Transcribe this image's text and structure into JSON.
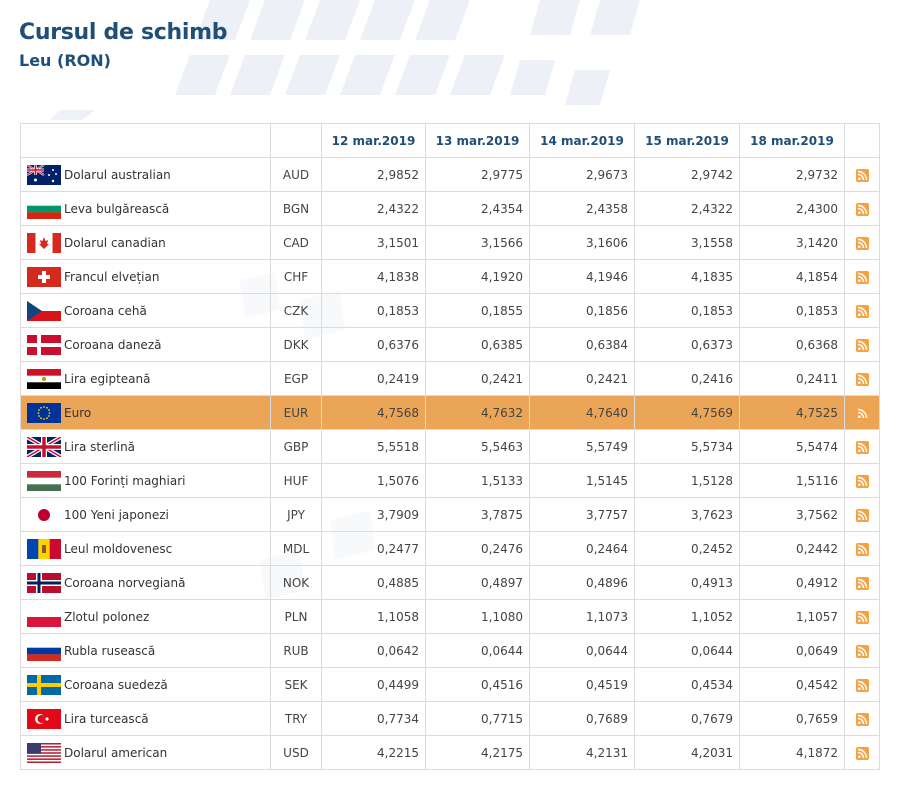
{
  "header": {
    "title": "Cursul de schimb",
    "subtitle": "Leu (RON)"
  },
  "table": {
    "dates": [
      "12 mar.2019",
      "13 mar.2019",
      "14 mar.2019",
      "15 mar.2019",
      "18 mar.2019"
    ],
    "highlight_color": "#eba556",
    "rows": [
      {
        "name": "Dolarul australian",
        "code": "AUD",
        "flag": "au",
        "values": [
          "2,9852",
          "2,9775",
          "2,9673",
          "2,9742",
          "2,9732"
        ]
      },
      {
        "name": "Leva bulgărească",
        "code": "BGN",
        "flag": "bg",
        "values": [
          "2,4322",
          "2,4354",
          "2,4358",
          "2,4322",
          "2,4300"
        ]
      },
      {
        "name": "Dolarul canadian",
        "code": "CAD",
        "flag": "ca",
        "values": [
          "3,1501",
          "3,1566",
          "3,1606",
          "3,1558",
          "3,1420"
        ]
      },
      {
        "name": "Francul elvețian",
        "code": "CHF",
        "flag": "ch",
        "values": [
          "4,1838",
          "4,1920",
          "4,1946",
          "4,1835",
          "4,1854"
        ]
      },
      {
        "name": "Coroana cehă",
        "code": "CZK",
        "flag": "cz",
        "values": [
          "0,1853",
          "0,1855",
          "0,1856",
          "0,1853",
          "0,1853"
        ]
      },
      {
        "name": "Coroana daneză",
        "code": "DKK",
        "flag": "dk",
        "values": [
          "0,6376",
          "0,6385",
          "0,6384",
          "0,6373",
          "0,6368"
        ]
      },
      {
        "name": "Lira egipteană",
        "code": "EGP",
        "flag": "eg",
        "values": [
          "0,2419",
          "0,2421",
          "0,2421",
          "0,2416",
          "0,2411"
        ]
      },
      {
        "name": "Euro",
        "code": "EUR",
        "flag": "eu",
        "highlight": true,
        "values": [
          "4,7568",
          "4,7632",
          "4,7640",
          "4,7569",
          "4,7525"
        ]
      },
      {
        "name": "Lira sterlină",
        "code": "GBP",
        "flag": "gb",
        "values": [
          "5,5518",
          "5,5463",
          "5,5749",
          "5,5734",
          "5,5474"
        ]
      },
      {
        "name": "100 Forinți maghiari",
        "code": "HUF",
        "flag": "hu",
        "values": [
          "1,5076",
          "1,5133",
          "1,5145",
          "1,5128",
          "1,5116"
        ]
      },
      {
        "name": "100 Yeni japonezi",
        "code": "JPY",
        "flag": "jp",
        "values": [
          "3,7909",
          "3,7875",
          "3,7757",
          "3,7623",
          "3,7562"
        ]
      },
      {
        "name": "Leul moldovenesc",
        "code": "MDL",
        "flag": "md",
        "values": [
          "0,2477",
          "0,2476",
          "0,2464",
          "0,2452",
          "0,2442"
        ]
      },
      {
        "name": "Coroana norvegiană",
        "code": "NOK",
        "flag": "no",
        "values": [
          "0,4885",
          "0,4897",
          "0,4896",
          "0,4913",
          "0,4912"
        ]
      },
      {
        "name": "Zlotul polonez",
        "code": "PLN",
        "flag": "pl",
        "values": [
          "1,1058",
          "1,1080",
          "1,1073",
          "1,1052",
          "1,1057"
        ]
      },
      {
        "name": "Rubla rusească",
        "code": "RUB",
        "flag": "ru",
        "values": [
          "0,0642",
          "0,0644",
          "0,0644",
          "0,0644",
          "0,0649"
        ]
      },
      {
        "name": "Coroana suedeză",
        "code": "SEK",
        "flag": "se",
        "values": [
          "0,4499",
          "0,4516",
          "0,4519",
          "0,4534",
          "0,4542"
        ]
      },
      {
        "name": "Lira turcească",
        "code": "TRY",
        "flag": "tr",
        "values": [
          "0,7734",
          "0,7715",
          "0,7689",
          "0,7679",
          "0,7659"
        ]
      },
      {
        "name": "Dolarul american",
        "code": "USD",
        "flag": "us",
        "values": [
          "4,2215",
          "4,2175",
          "4,2131",
          "4,2031",
          "4,1872"
        ]
      }
    ]
  },
  "icons": {
    "row_action": "rss-feed-icon"
  }
}
